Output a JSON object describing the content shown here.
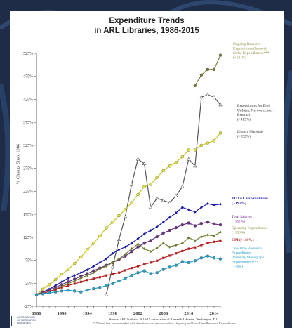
{
  "chart_data": {
    "type": "line",
    "title": "Expenditure Trends",
    "subtitle": "in ARL Libraries, 1986-2015",
    "ylabel": "% Change Since 1986",
    "xlabel": "",
    "xlim": [
      1986,
      2015
    ],
    "ylim": [
      -25,
      525
    ],
    "x_ticks": [
      "1986",
      "1990",
      "1994",
      "1998",
      "2002",
      "2006",
      "2010",
      "2014"
    ],
    "y_ticks": [
      "525%",
      "475%",
      "425%",
      "375%",
      "325%",
      "275%",
      "225%",
      "175%",
      "125%",
      "75%",
      "25%",
      "-25%"
    ],
    "x": [
      1986,
      1987,
      1988,
      1989,
      1990,
      1991,
      1992,
      1993,
      1994,
      1995,
      1996,
      1997,
      1998,
      1999,
      2000,
      2001,
      2002,
      2003,
      2004,
      2005,
      2006,
      2007,
      2008,
      2009,
      2010,
      2011,
      2012,
      2013,
      2014,
      2015
    ],
    "series": [
      {
        "name": "Ongoing Resource Expenditures (formerly Serial Expenditures)***",
        "note": "(+521%)",
        "color": "#7b7b3a",
        "marker": "circle",
        "values": [
          null,
          null,
          null,
          null,
          null,
          null,
          null,
          null,
          null,
          null,
          null,
          null,
          null,
          null,
          null,
          null,
          null,
          null,
          null,
          null,
          null,
          null,
          null,
          null,
          null,
          455,
          478,
          490,
          490,
          521
        ]
      },
      {
        "name": "Expenditures for Bibl. Utilities, Networks, etc. - External",
        "note": "(+413%)",
        "color": "#555555",
        "marker": "triangle",
        "values": [
          null,
          null,
          null,
          null,
          null,
          null,
          null,
          null,
          null,
          null,
          null,
          0,
          60,
          120,
          170,
          240,
          295,
          285,
          190,
          210,
          205,
          200,
          215,
          235,
          295,
          280,
          430,
          435,
          430,
          413
        ]
      },
      {
        "name": "Library Materials",
        "note": "(+352%)",
        "color": "#c7c72a",
        "marker": "circle",
        "values": [
          0,
          12,
          22,
          33,
          45,
          55,
          68,
          82,
          98,
          112,
          128,
          145,
          158,
          172,
          185,
          200,
          218,
          235,
          240,
          255,
          270,
          280,
          288,
          300,
          315,
          315,
          325,
          330,
          335,
          352
        ]
      },
      {
        "name": "TOTAL Expenditures",
        "note": "(+197%)",
        "color": "#1a1aa8",
        "marker": "diamond",
        "values": [
          0,
          6,
          12,
          20,
          28,
          36,
          42,
          48,
          54,
          62,
          70,
          78,
          90,
          98,
          104,
          112,
          122,
          132,
          140,
          148,
          158,
          168,
          178,
          190,
          185,
          180,
          190,
          198,
          195,
          197
        ]
      },
      {
        "name": "Total Salaries",
        "note": "(+152%)",
        "color": "#6b2e85",
        "marker": "circle",
        "values": [
          0,
          5,
          10,
          16,
          22,
          28,
          34,
          40,
          46,
          52,
          58,
          64,
          70,
          76,
          84,
          94,
          104,
          112,
          118,
          126,
          134,
          140,
          146,
          152,
          156,
          150,
          155,
          158,
          154,
          152
        ]
      },
      {
        "name": "Operating Expenditures",
        "note": "(+136%)",
        "color": "#6a7d2f",
        "marker": "diamond",
        "values": [
          0,
          3,
          7,
          12,
          18,
          24,
          30,
          36,
          42,
          48,
          56,
          62,
          70,
          78,
          88,
          100,
          110,
          100,
          94,
          102,
          112,
          104,
          108,
          112,
          124,
          118,
          126,
          130,
          128,
          136
        ]
      },
      {
        "name": "CPI",
        "note": "(+118%)",
        "color": "#b42020",
        "marker": "square",
        "values": [
          0,
          3,
          7,
          11,
          16,
          20,
          24,
          28,
          32,
          35,
          38,
          42,
          45,
          48,
          53,
          58,
          62,
          66,
          70,
          74,
          80,
          85,
          90,
          95,
          100,
          103,
          108,
          112,
          115,
          118
        ]
      },
      {
        "name": "One-Time Resource Expenditures (formerly Monograph Expenditures)***",
        "note": "(+78%)",
        "color": "#2aa0c8",
        "marker": "circle",
        "values": [
          0,
          2,
          4,
          6,
          8,
          10,
          8,
          6,
          10,
          13,
          16,
          20,
          24,
          30,
          35,
          42,
          48,
          52,
          46,
          48,
          55,
          60,
          64,
          72,
          70,
          74,
          80,
          84,
          80,
          78
        ]
      }
    ],
    "labels": {
      "ongoing": [
        "Ongoing Resource",
        "Expenditures (formerly",
        "Serial Expenditures)***",
        "(+521%)"
      ],
      "bibl": [
        "Expenditures for Bibl.",
        "Utilities, Networks, etc. -",
        "External",
        "(+413%)"
      ],
      "materials": [
        "Library Materials",
        "(+352%)"
      ],
      "total": [
        "TOTAL Expenditures",
        "(+197%)"
      ],
      "salaries": [
        "Total Salaries",
        "(+152%)"
      ],
      "operating": [
        "Operating Expenditures",
        "(+136%)"
      ],
      "cpi": [
        "CPI (+118%)"
      ],
      "onetime": [
        "One-Time Resource",
        "Expenditures",
        "(formerly Monograph",
        "Expenditures)***",
        "(+78%)"
      ]
    },
    "grid": false,
    "legend": "right, inline labels"
  },
  "source": "Source: ARL Statistics 2014-15 Association of Research Libraries, Washington, D.C.",
  "footnote": "***Trend line was extended with data from two new variables: Ongoing and One-Time Resource Expenditures",
  "logo_text": [
    "ASSOCIATION",
    "OF RESEARCH",
    "LIBRARIES"
  ]
}
